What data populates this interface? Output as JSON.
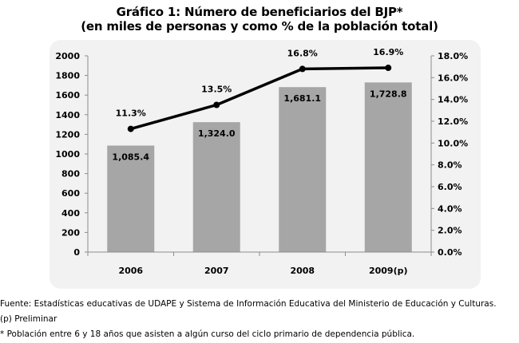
{
  "title_line1": "Gráfico 1: Número de beneficiarios del BJP*",
  "title_line2": "(en miles de personas y como % de la población total)",
  "footnotes": [
    "Fuente: Estadísticas educativas de UDAPE y Sistema de Información Educativa del Ministerio de Educación y Culturas.",
    "(p) Preliminar",
    "* Población entre 6 y 18 años que asisten a algún curso del ciclo primario de dependencia pública."
  ],
  "chart_data": {
    "type": "bar",
    "categories": [
      "2006",
      "2007",
      "2008",
      "2009(p)"
    ],
    "series": [
      {
        "type": "bar",
        "axis": "left",
        "values": [
          1085.4,
          1324.0,
          1681.1,
          1728.8
        ],
        "labels": [
          "1,085.4",
          "1,324.0",
          "1,681.1",
          "1,728.8"
        ],
        "color": "#a6a6a6"
      },
      {
        "type": "line",
        "axis": "right",
        "values": [
          11.3,
          13.5,
          16.8,
          16.9
        ],
        "labels": [
          "11.3%",
          "13.5%",
          "16.8%",
          "16.9%"
        ],
        "color": "#000000"
      }
    ],
    "y_left": {
      "range": [
        0,
        2000
      ],
      "ticks": [
        "0",
        "200",
        "400",
        "600",
        "800",
        "1000",
        "1200",
        "1400",
        "1600",
        "1800",
        "2000"
      ]
    },
    "y_right": {
      "range": [
        0,
        18
      ],
      "ticks": [
        "0.0%",
        "2.0%",
        "4.0%",
        "6.0%",
        "8.0%",
        "10.0%",
        "12.0%",
        "14.0%",
        "16.0%",
        "18.0%"
      ]
    },
    "grid": false,
    "legend": "none"
  }
}
